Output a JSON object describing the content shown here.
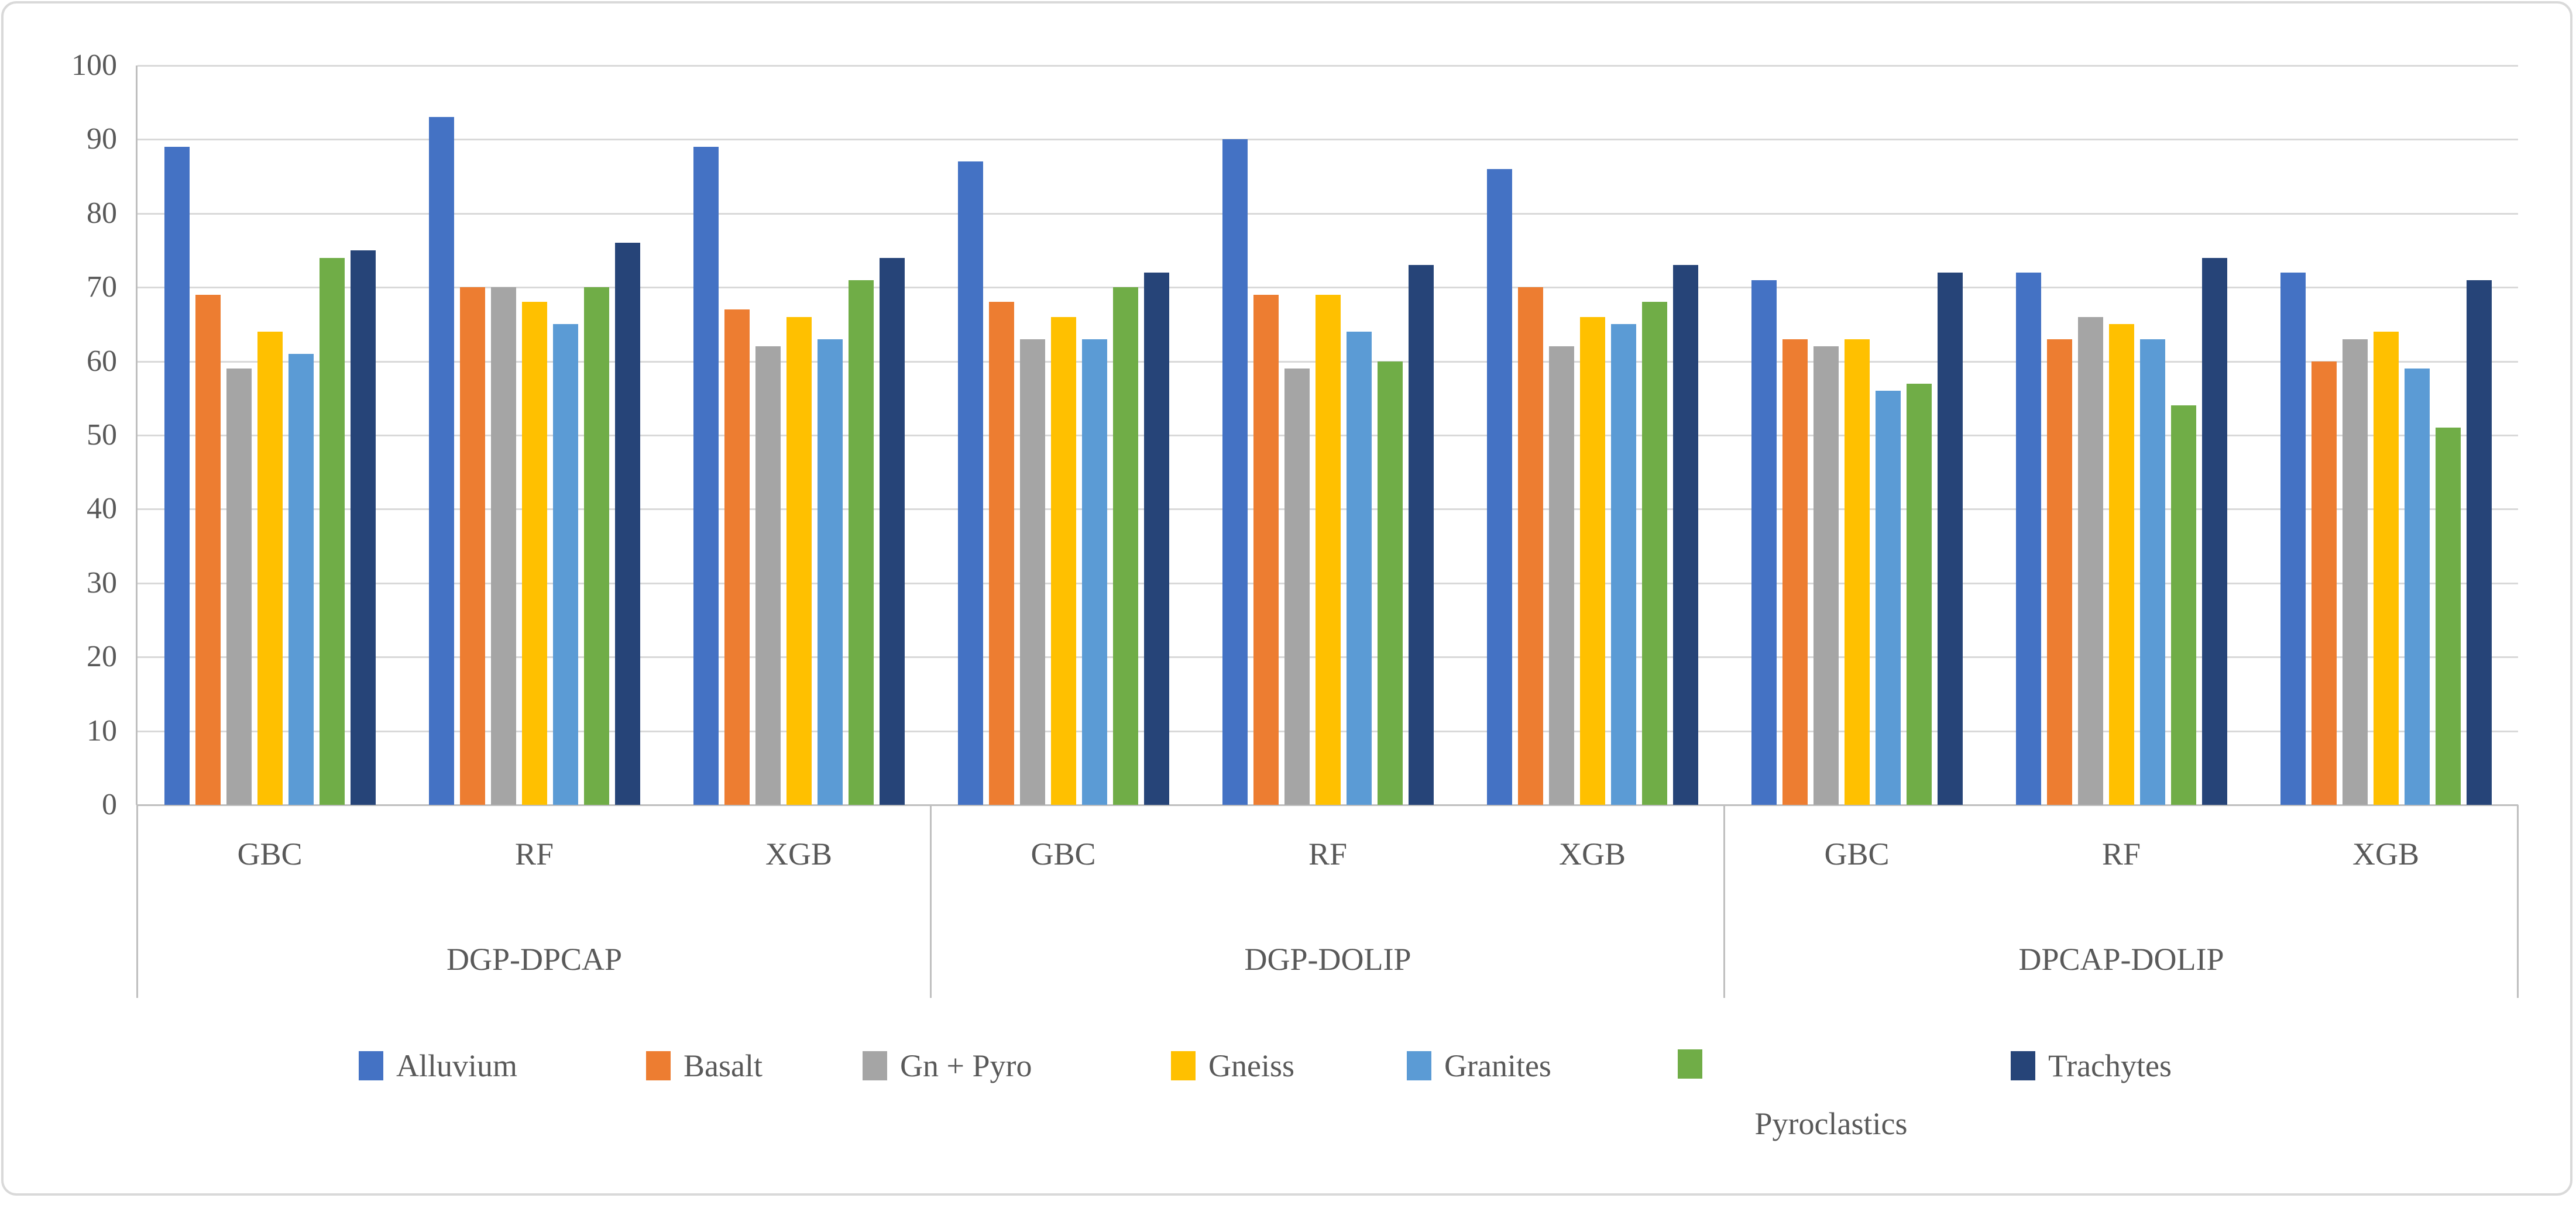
{
  "figure": {
    "background": "#FFFFFF",
    "border_color": "#D9D9D9",
    "grid_color": "#D9D9D9",
    "axis_color": "#BFBFBF",
    "text_color": "#595959"
  },
  "chart_data": {
    "type": "bar",
    "title": "",
    "xlabel": "",
    "ylabel": "",
    "grid": "horizontal",
    "legend_position": "bottom",
    "y_axis": {
      "min": 0,
      "max": 100,
      "step": 10,
      "tick_labels": [
        "0",
        "10",
        "20",
        "30",
        "40",
        "50",
        "60",
        "70",
        "80",
        "90",
        "100"
      ]
    },
    "x_axis": {
      "sections": [
        {
          "label": "DGP-DPCAP",
          "models": [
            "GBC",
            "RF",
            "XGB"
          ]
        },
        {
          "label": "DGP-DOLIP",
          "models": [
            "GBC",
            "RF",
            "XGB"
          ]
        },
        {
          "label": "DPCAP-DOLIP",
          "models": [
            "GBC",
            "RF",
            "XGB"
          ]
        }
      ]
    },
    "categories": [
      "DGP-DPCAP GBC",
      "DGP-DPCAP RF",
      "DGP-DPCAP XGB",
      "DGP-DOLIP GBC",
      "DGP-DOLIP RF",
      "DGP-DOLIP XGB",
      "DPCAP-DOLIP GBC",
      "DPCAP-DOLIP RF",
      "DPCAP-DOLIP XGB"
    ],
    "series": [
      {
        "name": "Alluvium",
        "color": "#4472C4",
        "values": [
          89,
          93,
          89,
          87,
          90,
          86,
          71,
          72,
          72
        ]
      },
      {
        "name": "Basalt",
        "color": "#ED7D31",
        "values": [
          69,
          70,
          67,
          68,
          69,
          70,
          63,
          63,
          60
        ]
      },
      {
        "name": "Gn + Pyro",
        "color": "#A5A5A5",
        "values": [
          59,
          70,
          62,
          63,
          59,
          62,
          62,
          66,
          63
        ]
      },
      {
        "name": "Gneiss",
        "color": "#FFC000",
        "values": [
          64,
          68,
          66,
          66,
          69,
          66,
          63,
          65,
          64
        ]
      },
      {
        "name": "Granites",
        "color": "#5B9BD5",
        "values": [
          61,
          65,
          63,
          63,
          64,
          65,
          56,
          63,
          59
        ]
      },
      {
        "name": "Pyroclastics",
        "color": "#70AD47",
        "values": [
          74,
          70,
          71,
          70,
          60,
          68,
          57,
          54,
          51
        ]
      },
      {
        "name": "Trachytes",
        "color": "#264478",
        "values": [
          75,
          76,
          74,
          72,
          73,
          73,
          72,
          74,
          71
        ]
      }
    ]
  }
}
